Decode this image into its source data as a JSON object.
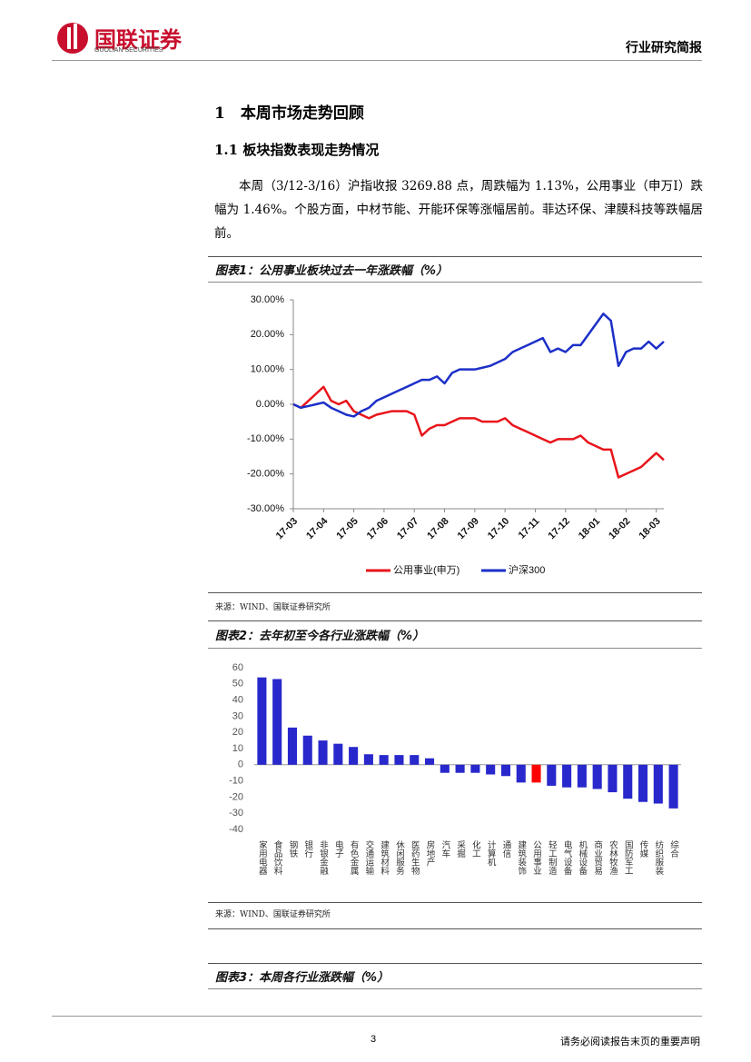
{
  "header": {
    "logo": "国联证券",
    "logo_en": "GUOLIAN SECURITIES",
    "report_type": "行业研究简报"
  },
  "section": {
    "heading": "1　本周市场走势回顾",
    "subheading": "1.1  板块指数表现走势情况",
    "paragraph": "本周（3/12-3/16）沪指收报 3269.88 点，周跌幅为 1.13%，公用事业（申万Ⅰ）跌幅为 1.46%。个股方面，中材节能、开能环保等涨幅居前。菲达环保、津膜科技等跌幅居前。"
  },
  "figures": [
    {
      "title": "图表1：公用事业板块过去一年涨跌幅（%）",
      "source": "来源：WIND、国联证券研究所"
    },
    {
      "title": "图表2：去年初至今各行业涨跌幅（%）",
      "source": "来源：WIND、国联证券研究所"
    },
    {
      "title": "图表3：本周各行业涨跌幅（%）"
    }
  ],
  "footer": {
    "page": "3",
    "note": "请务必阅读报告末页的重要声明"
  },
  "chart_data": [
    {
      "type": "line",
      "x": [
        0,
        0.25,
        0.5,
        0.75,
        1,
        1.25,
        1.5,
        1.75,
        2,
        2.25,
        2.5,
        2.75,
        3,
        3.25,
        3.5,
        3.75,
        4,
        4.25,
        4.5,
        4.75,
        5,
        5.25,
        5.5,
        5.75,
        6,
        6.25,
        6.5,
        6.75,
        7,
        7.25,
        7.5,
        7.75,
        8,
        8.25,
        8.5,
        8.75,
        9,
        9.25,
        9.5,
        9.75,
        10,
        10.25,
        10.5,
        10.75,
        11,
        11.25,
        11.5,
        11.75,
        12,
        12.25
      ],
      "xlim": [
        0,
        12.25
      ],
      "xticks": [
        {
          "value": 0,
          "label": "17-03"
        },
        {
          "value": 1,
          "label": "17-04"
        },
        {
          "value": 2,
          "label": "17-05"
        },
        {
          "value": 3,
          "label": "17-06"
        },
        {
          "value": 4,
          "label": "17-07"
        },
        {
          "value": 5,
          "label": "17-08"
        },
        {
          "value": 6,
          "label": "17-09"
        },
        {
          "value": 7,
          "label": "17-10"
        },
        {
          "value": 8,
          "label": "17-11"
        },
        {
          "value": 9,
          "label": "17-12"
        },
        {
          "value": 10,
          "label": "18-01"
        },
        {
          "value": 11,
          "label": "18-02"
        },
        {
          "value": 12,
          "label": "18-03"
        }
      ],
      "ylim": [
        -30,
        30
      ],
      "yticks": [
        {
          "value": 30,
          "label": "30.00%"
        },
        {
          "value": 20,
          "label": "20.00%"
        },
        {
          "value": 10,
          "label": "10.00%"
        },
        {
          "value": 0,
          "label": "0.00%"
        },
        {
          "value": -10,
          "label": "-10.00%"
        },
        {
          "value": -20,
          "label": "-20.00%"
        },
        {
          "value": -30,
          "label": "-30.00%"
        }
      ],
      "legend": "bottom",
      "series": [
        {
          "name": "公用事业(申万)",
          "color": "#e8141b",
          "values": [
            0,
            -1,
            1,
            3,
            5,
            1,
            0,
            1,
            -2,
            -3,
            -4,
            -3,
            -2.5,
            -2,
            -2,
            -2,
            -3,
            -9,
            -7,
            -6,
            -6,
            -5,
            -4,
            -4,
            -4,
            -5,
            -5,
            -5,
            -4,
            -6,
            -7,
            -8,
            -9,
            -10,
            -11,
            -10,
            -10,
            -10,
            -9,
            -11,
            -12,
            -13,
            -13,
            -21,
            -20,
            -19,
            -18,
            -16,
            -14,
            -16
          ]
        },
        {
          "name": "沪深300",
          "color": "#1c2fc8",
          "values": [
            0,
            -1,
            -0.5,
            0,
            0.5,
            -1,
            -2,
            -3,
            -3.5,
            -2,
            -1,
            1,
            2,
            3,
            4,
            5,
            6,
            7,
            7,
            8,
            6,
            9,
            10,
            10,
            10,
            10.5,
            11,
            12,
            13,
            15,
            16,
            17,
            18,
            19,
            15,
            16,
            15,
            17,
            17,
            20,
            23,
            26,
            24,
            11,
            15,
            16,
            16,
            18,
            16,
            18
          ]
        }
      ]
    },
    {
      "type": "bar",
      "categories": [
        "家用电器",
        "食品饮料",
        "钢铁",
        "银行",
        "非银金融",
        "电子",
        "有色金属",
        "交通运输",
        "建筑材料",
        "休闲服务",
        "医药生物",
        "房地产",
        "汽车",
        "采掘",
        "化工",
        "计算机",
        "通信",
        "建筑装饰",
        "公用事业",
        "轻工制造",
        "电气设备",
        "机械设备",
        "商业贸易",
        "农林牧渔",
        "国防军工",
        "传媒",
        "纺织服装",
        "综合"
      ],
      "values": [
        54,
        53,
        23,
        18,
        15,
        13,
        11,
        6.5,
        6,
        6,
        6,
        4,
        -5,
        -5,
        -5,
        -6,
        -7,
        -11,
        -11,
        -13,
        -14,
        -14,
        -15,
        -17,
        -21,
        -23,
        -24,
        -27
      ],
      "colors": [
        "#2828cc",
        "#2828cc",
        "#2828cc",
        "#2828cc",
        "#2828cc",
        "#2828cc",
        "#2828cc",
        "#2828cc",
        "#2828cc",
        "#2828cc",
        "#2828cc",
        "#2828cc",
        "#2828cc",
        "#2828cc",
        "#2828cc",
        "#2828cc",
        "#2828cc",
        "#2828cc",
        "#ff0000",
        "#2828cc",
        "#2828cc",
        "#2828cc",
        "#2828cc",
        "#2828cc",
        "#2828cc",
        "#2828cc",
        "#2828cc",
        "#2828cc"
      ],
      "ylim": [
        -40,
        60
      ],
      "yticks": [
        60,
        50,
        40,
        30,
        20,
        10,
        0,
        -10,
        -20,
        -30,
        -40
      ]
    }
  ]
}
